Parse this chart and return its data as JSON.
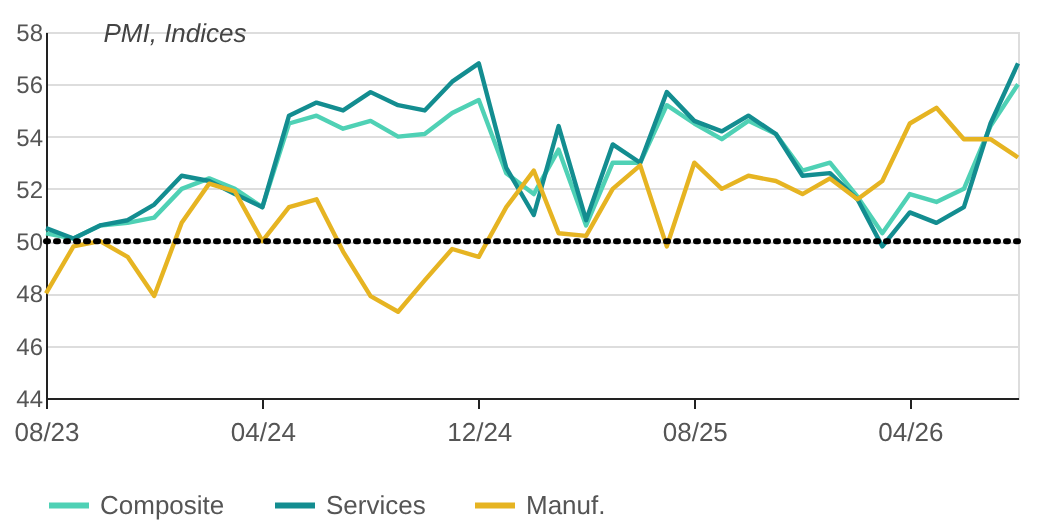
{
  "chart_data": {
    "type": "line",
    "title": "PMI, Indices",
    "x": [
      "2023-08",
      "2023-09",
      "2023-10",
      "2023-11",
      "2023-12",
      "2024-01",
      "2024-02",
      "2024-03",
      "2024-04",
      "2024-05",
      "2024-06",
      "2024-07",
      "2024-08",
      "2024-09",
      "2024-10",
      "2024-11",
      "2024-12",
      "2025-01",
      "2025-02",
      "2025-03",
      "2025-04",
      "2025-05",
      "2025-06",
      "2025-07",
      "2025-08",
      "2025-09",
      "2025-10",
      "2025-11",
      "2025-12",
      "2026-01",
      "2026-02",
      "2026-03",
      "2026-04",
      "2026-05",
      "2026-06",
      "2026-07",
      "2026-08"
    ],
    "series": [
      {
        "name": "Composite",
        "color": "#4fd1b5",
        "values": [
          50.3,
          50.1,
          50.6,
          50.7,
          50.9,
          52.0,
          52.4,
          52.0,
          51.3,
          54.5,
          54.8,
          54.3,
          54.6,
          54.0,
          54.1,
          54.9,
          55.4,
          52.6,
          51.8,
          53.5,
          50.6,
          53.0,
          53.0,
          55.2,
          54.5,
          53.9,
          54.6,
          54.1,
          52.7,
          53.0,
          51.7,
          50.3,
          51.8,
          51.5,
          52.0,
          54.4,
          56.0
        ]
      },
      {
        "name": "Services",
        "color": "#138d90",
        "values": [
          50.5,
          50.1,
          50.6,
          50.8,
          51.4,
          52.5,
          52.3,
          51.8,
          51.3,
          54.8,
          55.3,
          55.0,
          55.7,
          55.2,
          55.0,
          56.1,
          56.8,
          52.8,
          51.0,
          54.4,
          50.8,
          53.7,
          53.0,
          55.7,
          54.6,
          54.2,
          54.8,
          54.1,
          52.5,
          52.6,
          51.6,
          49.8,
          51.1,
          50.7,
          51.3,
          54.5,
          56.8
        ]
      },
      {
        "name": "Manuf.",
        "color": "#e6b422",
        "values": [
          48.0,
          49.8,
          50.0,
          49.4,
          47.9,
          50.7,
          52.2,
          51.9,
          50.0,
          51.3,
          51.6,
          49.6,
          47.9,
          47.3,
          48.5,
          49.7,
          49.4,
          51.3,
          52.7,
          50.3,
          50.2,
          52.0,
          52.9,
          49.8,
          53.0,
          52.0,
          52.5,
          52.3,
          51.8,
          52.4,
          51.6,
          52.3,
          54.5,
          55.1,
          53.9,
          53.9,
          53.2
        ]
      }
    ],
    "xlim": [
      "2023-08",
      "2026-08"
    ],
    "xticks": [
      {
        "value": "2023-08",
        "label": "08/23"
      },
      {
        "value": "2024-04",
        "label": "04/24"
      },
      {
        "value": "2024-12",
        "label": "12/24"
      },
      {
        "value": "2025-08",
        "label": "08/25"
      },
      {
        "value": "2026-04",
        "label": "04/26"
      }
    ],
    "ylim": [
      44,
      58
    ],
    "yticks": [
      44,
      46,
      48,
      50,
      52,
      54,
      56,
      58
    ],
    "ref_lines": [
      {
        "axis": "y",
        "value": 50,
        "color": "#000000",
        "line_style": "dotted"
      }
    ],
    "grid": "y",
    "legend": "bottom",
    "line_style": "solid",
    "marker": "none"
  }
}
